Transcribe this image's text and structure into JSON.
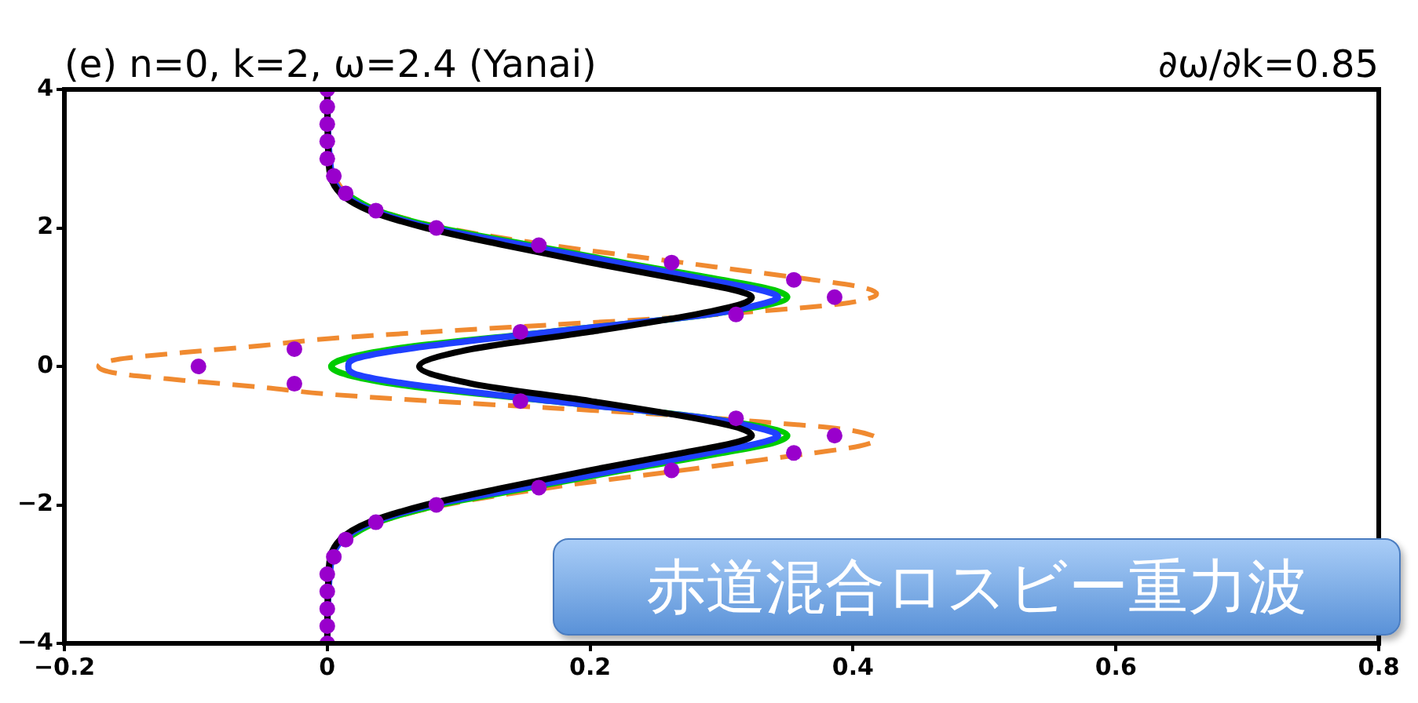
{
  "chart_data": {
    "type": "line",
    "title": "(e) n=0, k=2, ω=2.4 (Yanai)",
    "subtitle": "∂ω/∂k=0.85",
    "annotations": [
      "赤道混合ロスビー重力波"
    ],
    "xlim": [
      -0.2,
      0.8
    ],
    "xticks": [
      -0.2,
      0,
      0.2,
      0.4,
      0.6,
      0.8
    ],
    "ylim": [
      -4,
      4
    ],
    "yticks": [
      -4,
      -2,
      0,
      2,
      4
    ],
    "grid": false,
    "legend": false,
    "marker": "none",
    "series": [
      {
        "type": "line",
        "color": "#f08a30",
        "line_style": "dashed",
        "x": [
          0.005,
          0.015,
          0.04,
          0.09,
          0.17,
          0.27,
          0.31,
          0.37,
          0.405,
          0.418,
          0.415,
          0.39,
          0.33,
          0.26,
          0.17,
          0.08,
          0,
          -0.05,
          -0.11,
          -0.16,
          -0.174,
          -0.16,
          -0.11,
          -0.05,
          0,
          0.08,
          0.17,
          0.26,
          0.33,
          0.39,
          0.415,
          0.418,
          0.405,
          0.37,
          0.31,
          0.27,
          0.17,
          0.09,
          0.04,
          0.015,
          0.005
        ],
        "values": [
          2.75,
          2.5,
          2.25,
          2,
          1.75,
          1.5,
          1.4,
          1.25,
          1.15,
          1.05,
          1,
          0.9,
          0.8,
          0.7,
          0.6,
          0.5,
          0.4,
          0.3,
          0.2,
          0.1,
          0,
          -0.1,
          -0.2,
          -0.3,
          -0.4,
          -0.5,
          -0.6,
          -0.7,
          -0.8,
          -0.9,
          -1,
          -1.05,
          -1.15,
          -1.25,
          -1.4,
          -1.5,
          -1.75,
          -2,
          -2.25,
          -2.5,
          -2.75
        ]
      },
      {
        "type": "line",
        "color": "#00cc00",
        "line_style": "solid",
        "x": [
          0.013,
          0.038,
          0.085,
          0.155,
          0.225,
          0.3,
          0.34,
          0.35,
          0.29,
          0.17,
          0.05,
          0.003,
          0.05,
          0.17,
          0.29,
          0.35,
          0.34,
          0.3,
          0.225,
          0.155,
          0.085,
          0.038,
          0.013
        ],
        "values": [
          2.5,
          2.25,
          2,
          1.75,
          1.5,
          1.25,
          1.1,
          1,
          0.75,
          0.5,
          0.25,
          0,
          -0.25,
          -0.5,
          -0.75,
          -1,
          -1.1,
          -1.25,
          -1.5,
          -1.75,
          -2,
          -2.25,
          -2.5
        ]
      },
      {
        "type": "line",
        "color": "#2040ff",
        "line_style": "solid",
        "x": [
          0,
          0.002,
          0.012,
          0.035,
          0.08,
          0.15,
          0.22,
          0.29,
          0.33,
          0.343,
          0.33,
          0.29,
          0.17,
          0.06,
          0.02,
          0.016,
          0.02,
          0.06,
          0.17,
          0.29,
          0.33,
          0.343,
          0.33,
          0.29,
          0.22,
          0.15,
          0.08,
          0.035,
          0.012,
          0.002,
          0
        ],
        "values": [
          4,
          3,
          2.5,
          2.25,
          2,
          1.75,
          1.5,
          1.25,
          1.1,
          1,
          0.9,
          0.75,
          0.5,
          0.25,
          0.1,
          0,
          -0.1,
          -0.25,
          -0.5,
          -0.75,
          -0.9,
          -1,
          -1.1,
          -1.25,
          -1.5,
          -1.75,
          -2,
          -2.25,
          -2.5,
          -3,
          -4
        ]
      },
      {
        "type": "line",
        "color": "#000000",
        "line_style": "solid",
        "x": [
          0,
          0.001,
          0.01,
          0.032,
          0.075,
          0.135,
          0.2,
          0.27,
          0.31,
          0.323,
          0.315,
          0.28,
          0.2,
          0.11,
          0.07,
          0.11,
          0.2,
          0.28,
          0.315,
          0.323,
          0.31,
          0.27,
          0.2,
          0.135,
          0.075,
          0.032,
          0.01,
          0.001,
          0
        ],
        "values": [
          4,
          3,
          2.5,
          2.25,
          2,
          1.75,
          1.5,
          1.25,
          1.1,
          1,
          0.9,
          0.75,
          0.5,
          0.25,
          0,
          -0.25,
          -0.5,
          -0.75,
          -0.9,
          -1,
          -1.1,
          -1.25,
          -1.5,
          -1.75,
          -2,
          -2.25,
          -2.5,
          -3,
          -4
        ]
      },
      {
        "type": "scatter",
        "color": "#9900cc",
        "marker": "circle",
        "x": [
          0,
          0,
          0,
          0,
          0,
          0.005,
          0.014,
          0.037,
          0.083,
          0.161,
          0.262,
          0.355,
          0.386,
          0.311,
          0.147,
          -0.025,
          -0.098,
          -0.025,
          0.147,
          0.311,
          0.386,
          0.355,
          0.262,
          0.161,
          0.083,
          0.037,
          0.014,
          0.005,
          0,
          0,
          0,
          0,
          0
        ],
        "values": [
          4,
          3.75,
          3.5,
          3.25,
          3,
          2.75,
          2.5,
          2.25,
          2,
          1.75,
          1.5,
          1.25,
          1,
          0.75,
          0.5,
          0.25,
          0,
          -0.25,
          -0.5,
          -0.75,
          -1,
          -1.25,
          -1.5,
          -1.75,
          -2,
          -2.25,
          -2.5,
          -2.75,
          -3,
          -3.25,
          -3.5,
          -3.75,
          -4
        ]
      }
    ]
  }
}
